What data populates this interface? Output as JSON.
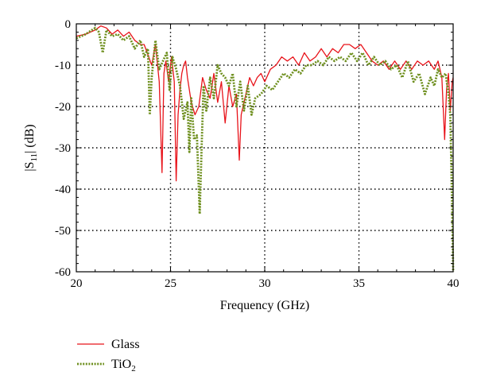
{
  "chart_data": {
    "type": "line",
    "xlabel": "Frequency (GHz)",
    "ylabel": "|S",
    "ylabel_sub": "11",
    "ylabel_tail": "| (dB)",
    "xlim": [
      20,
      40
    ],
    "ylim": [
      -60,
      0
    ],
    "xticks": [
      20,
      25,
      30,
      35,
      40
    ],
    "yticks": [
      0,
      -10,
      -20,
      -30,
      -40,
      -50,
      -60
    ],
    "grid": "dotted",
    "legend_position": "bottom-left, below plot",
    "series": [
      {
        "name": "Glass",
        "color": "#e8141b",
        "style": "solid",
        "x": [
          20.0,
          20.5,
          21.0,
          21.3,
          21.6,
          21.9,
          22.2,
          22.5,
          22.8,
          23.1,
          23.4,
          23.6,
          23.8,
          24.0,
          24.2,
          24.4,
          24.55,
          24.65,
          24.75,
          24.9,
          25.05,
          25.2,
          25.3,
          25.4,
          25.5,
          25.6,
          25.7,
          25.8,
          25.9,
          26.0,
          26.1,
          26.3,
          26.5,
          26.7,
          26.9,
          27.1,
          27.3,
          27.5,
          27.7,
          27.9,
          28.1,
          28.3,
          28.5,
          28.65,
          28.75,
          28.85,
          29.0,
          29.2,
          29.4,
          29.6,
          29.8,
          30.0,
          30.3,
          30.6,
          30.9,
          31.2,
          31.5,
          31.8,
          32.1,
          32.4,
          32.7,
          33.0,
          33.3,
          33.6,
          33.9,
          34.2,
          34.5,
          34.8,
          35.1,
          35.4,
          35.7,
          36.0,
          36.3,
          36.6,
          36.9,
          37.2,
          37.5,
          37.8,
          38.1,
          38.4,
          38.7,
          39.0,
          39.2,
          39.4,
          39.55,
          39.65,
          39.75,
          39.85,
          39.95,
          40.0
        ],
        "y": [
          -3,
          -2.5,
          -1.5,
          -0.5,
          -1,
          -2.5,
          -1.5,
          -3,
          -2,
          -4,
          -5,
          -5,
          -7.5,
          -10,
          -5,
          -14,
          -36,
          -12,
          -9,
          -14,
          -8,
          -14,
          -38,
          -22,
          -16,
          -12,
          -10,
          -9,
          -13,
          -16,
          -19,
          -22,
          -20,
          -13,
          -16,
          -18,
          -12,
          -19,
          -14,
          -24,
          -15,
          -20,
          -17,
          -33,
          -22,
          -20,
          -17,
          -13,
          -15,
          -13,
          -12,
          -14,
          -11,
          -10,
          -8,
          -9,
          -8,
          -10,
          -7,
          -9,
          -8,
          -6,
          -8,
          -6,
          -7,
          -5,
          -5,
          -6,
          -5,
          -7,
          -9,
          -10,
          -9,
          -11,
          -9,
          -11,
          -9,
          -11,
          -9,
          -10,
          -9,
          -11,
          -9,
          -13,
          -28,
          -16,
          -12,
          -21,
          -14,
          -13
        ]
      },
      {
        "name": "TiO",
        "name_sub": "2",
        "color": "#6e8f1e",
        "style": "dotted",
        "x": [
          20.0,
          20.5,
          21.0,
          21.2,
          21.4,
          21.6,
          21.9,
          22.2,
          22.5,
          22.8,
          23.1,
          23.4,
          23.6,
          23.8,
          23.9,
          24.0,
          24.2,
          24.4,
          24.6,
          24.8,
          24.95,
          25.1,
          25.3,
          25.5,
          25.7,
          25.9,
          26.0,
          26.1,
          26.25,
          26.4,
          26.55,
          26.65,
          26.75,
          26.9,
          27.1,
          27.3,
          27.5,
          27.7,
          27.9,
          28.1,
          28.3,
          28.5,
          28.7,
          28.9,
          29.1,
          29.3,
          29.5,
          29.8,
          30.1,
          30.4,
          30.7,
          31.0,
          31.3,
          31.6,
          31.9,
          32.2,
          32.5,
          32.8,
          33.1,
          33.4,
          33.7,
          34.0,
          34.3,
          34.6,
          34.9,
          35.2,
          35.5,
          35.8,
          36.1,
          36.4,
          36.7,
          37.0,
          37.3,
          37.6,
          37.9,
          38.2,
          38.5,
          38.8,
          39.0,
          39.2,
          39.4,
          39.6,
          39.75,
          39.85,
          39.95,
          40.0
        ],
        "y": [
          -3.5,
          -2.5,
          -1,
          -2,
          -7,
          -1.5,
          -3,
          -2.5,
          -4,
          -3,
          -6,
          -4,
          -8,
          -6,
          -22,
          -13,
          -4,
          -11,
          -9,
          -7,
          -16,
          -8,
          -11,
          -15,
          -23,
          -19,
          -31,
          -18,
          -28,
          -27,
          -46,
          -30,
          -15,
          -21,
          -13,
          -18,
          -10,
          -12,
          -13,
          -15,
          -12,
          -20,
          -14,
          -21,
          -15,
          -22,
          -18,
          -17,
          -15,
          -16,
          -14,
          -12,
          -13,
          -11,
          -12,
          -10,
          -10,
          -9,
          -10,
          -8,
          -9,
          -8,
          -9,
          -7,
          -9,
          -7,
          -10,
          -8,
          -10,
          -9,
          -11,
          -10,
          -13,
          -9,
          -14,
          -12,
          -17,
          -13,
          -15,
          -11,
          -13,
          -12,
          -17,
          -22,
          -45,
          -60
        ]
      }
    ]
  }
}
